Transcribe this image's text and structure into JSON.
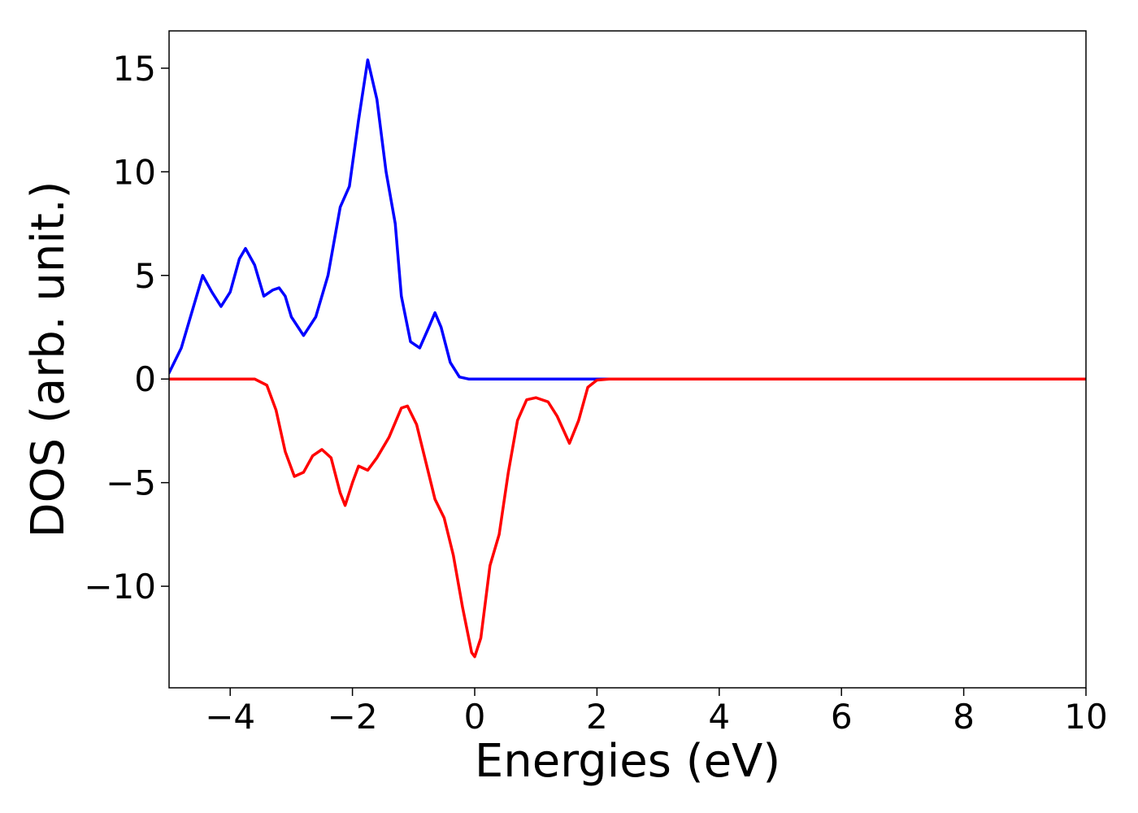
{
  "chart_data": {
    "type": "line",
    "x_label": "Energies (eV)",
    "y_label": "DOS (arb. unit.)",
    "xlim": [
      -5,
      10
    ],
    "ylim": [
      -14.9,
      16.8
    ],
    "xticks": [
      {
        "value": -4,
        "label": "−4"
      },
      {
        "value": -2,
        "label": "−2"
      },
      0,
      2,
      4,
      6,
      8,
      10
    ],
    "yticks": [
      {
        "value": -10,
        "label": "−10"
      },
      {
        "value": -5,
        "label": "−5"
      },
      0,
      5,
      10,
      15
    ],
    "grid": false,
    "series": [
      {
        "color": "#0000ff",
        "x": [
          -5,
          -4.8,
          -4.6,
          -4.45,
          -4.3,
          -4.15,
          -4.0,
          -3.85,
          -3.75,
          -3.6,
          -3.45,
          -3.3,
          -3.2,
          -3.1,
          -3.0,
          -2.8,
          -2.6,
          -2.4,
          -2.2,
          -2.05,
          -1.9,
          -1.75,
          -1.6,
          -1.45,
          -1.3,
          -1.2,
          -1.05,
          -0.9,
          -0.75,
          -0.65,
          -0.55,
          -0.4,
          -0.25,
          -0.1,
          0,
          2,
          10
        ],
        "values": [
          0.3,
          1.5,
          3.5,
          5.0,
          4.2,
          3.5,
          4.2,
          5.8,
          6.3,
          5.5,
          4.0,
          4.3,
          4.4,
          4.0,
          3.0,
          2.1,
          3.0,
          5.0,
          8.3,
          9.3,
          12.5,
          15.4,
          13.5,
          10.0,
          7.5,
          4.0,
          1.8,
          1.5,
          2.5,
          3.2,
          2.5,
          0.8,
          0.1,
          0.0,
          0,
          0,
          0
        ]
      },
      {
        "color": "#ff0000",
        "x": [
          -5,
          -3.6,
          -3.4,
          -3.25,
          -3.1,
          -2.95,
          -2.8,
          -2.65,
          -2.5,
          -2.35,
          -2.2,
          -2.12,
          -2.0,
          -1.9,
          -1.75,
          -1.6,
          -1.4,
          -1.2,
          -1.1,
          -0.95,
          -0.8,
          -0.65,
          -0.5,
          -0.35,
          -0.2,
          -0.05,
          0.0,
          0.1,
          0.25,
          0.4,
          0.55,
          0.7,
          0.85,
          1.0,
          1.2,
          1.35,
          1.55,
          1.7,
          1.85,
          2.0,
          2.2,
          10
        ],
        "values": [
          0,
          0,
          -0.3,
          -1.5,
          -3.5,
          -4.7,
          -4.5,
          -3.7,
          -3.4,
          -3.8,
          -5.5,
          -6.1,
          -5.0,
          -4.2,
          -4.4,
          -3.8,
          -2.8,
          -1.4,
          -1.3,
          -2.2,
          -4.0,
          -5.8,
          -6.7,
          -8.5,
          -11.0,
          -13.2,
          -13.4,
          -12.5,
          -9.0,
          -7.5,
          -4.5,
          -2.0,
          -1.0,
          -0.9,
          -1.1,
          -1.8,
          -3.1,
          -2.0,
          -0.4,
          -0.05,
          0,
          0
        ]
      }
    ]
  }
}
